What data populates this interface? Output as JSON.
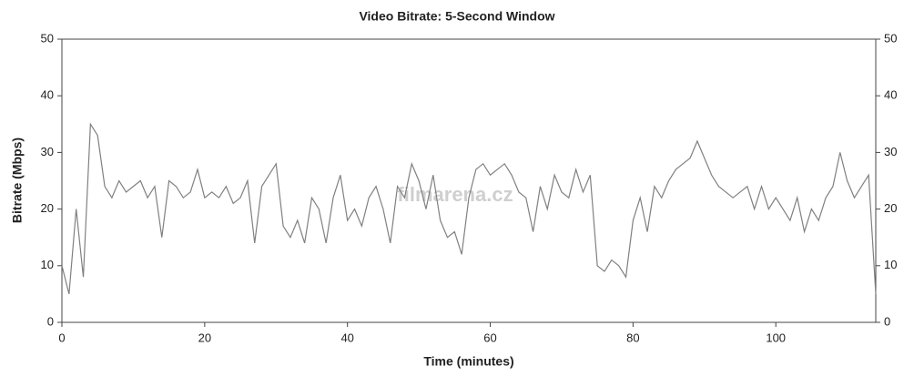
{
  "chart_data": {
    "type": "line",
    "title": "Video Bitrate: 5-Second Window",
    "xlabel": "Time (minutes)",
    "ylabel": "Bitrate (Mbps)",
    "watermark": "filmarena.cz",
    "x": [
      0,
      1,
      2,
      3,
      4,
      5,
      6,
      7,
      8,
      9,
      10,
      11,
      12,
      13,
      14,
      15,
      16,
      17,
      18,
      19,
      20,
      21,
      22,
      23,
      24,
      25,
      26,
      27,
      28,
      29,
      30,
      31,
      32,
      33,
      34,
      35,
      36,
      37,
      38,
      39,
      40,
      41,
      42,
      43,
      44,
      45,
      46,
      47,
      48,
      49,
      50,
      51,
      52,
      53,
      54,
      55,
      56,
      57,
      58,
      59,
      60,
      61,
      62,
      63,
      64,
      65,
      66,
      67,
      68,
      69,
      70,
      71,
      72,
      73,
      74,
      75,
      76,
      77,
      78,
      79,
      80,
      81,
      82,
      83,
      84,
      85,
      86,
      87,
      88,
      89,
      90,
      91,
      92,
      93,
      94,
      95,
      96,
      97,
      98,
      99,
      100,
      101,
      102,
      103,
      104,
      105,
      106,
      107,
      108,
      109,
      110,
      111,
      112,
      113,
      114
    ],
    "series": [
      {
        "name": "Bitrate",
        "color": "#808080",
        "values": [
          10,
          5,
          20,
          8,
          35,
          33,
          24,
          22,
          25,
          23,
          24,
          25,
          22,
          24,
          15,
          25,
          24,
          22,
          23,
          27,
          22,
          23,
          22,
          24,
          21,
          22,
          25,
          14,
          24,
          26,
          28,
          17,
          15,
          18,
          14,
          22,
          20,
          14,
          22,
          26,
          18,
          20,
          17,
          22,
          24,
          20,
          14,
          24,
          22,
          28,
          25,
          20,
          26,
          18,
          15,
          16,
          12,
          22,
          27,
          28,
          26,
          27,
          28,
          26,
          23,
          22,
          16,
          24,
          20,
          26,
          23,
          22,
          27,
          23,
          26,
          10,
          9,
          11,
          10,
          8,
          18,
          22,
          16,
          24,
          22,
          25,
          27,
          28,
          29,
          32,
          29,
          26,
          24,
          23,
          22,
          23,
          24,
          20,
          24,
          20,
          22,
          20,
          18,
          22,
          16,
          20,
          18,
          22,
          24,
          30,
          25,
          22,
          24,
          26,
          5
        ]
      }
    ],
    "xlim": [
      0,
      114
    ],
    "xticks": [
      0,
      20,
      40,
      60,
      80,
      100
    ],
    "ylim": [
      0,
      50
    ],
    "yticks": [
      0,
      10,
      20,
      30,
      40,
      50
    ],
    "y2lim": [
      0,
      50
    ],
    "y2ticks": [
      0,
      10,
      20,
      30,
      40,
      50
    ],
    "grid": false
  }
}
